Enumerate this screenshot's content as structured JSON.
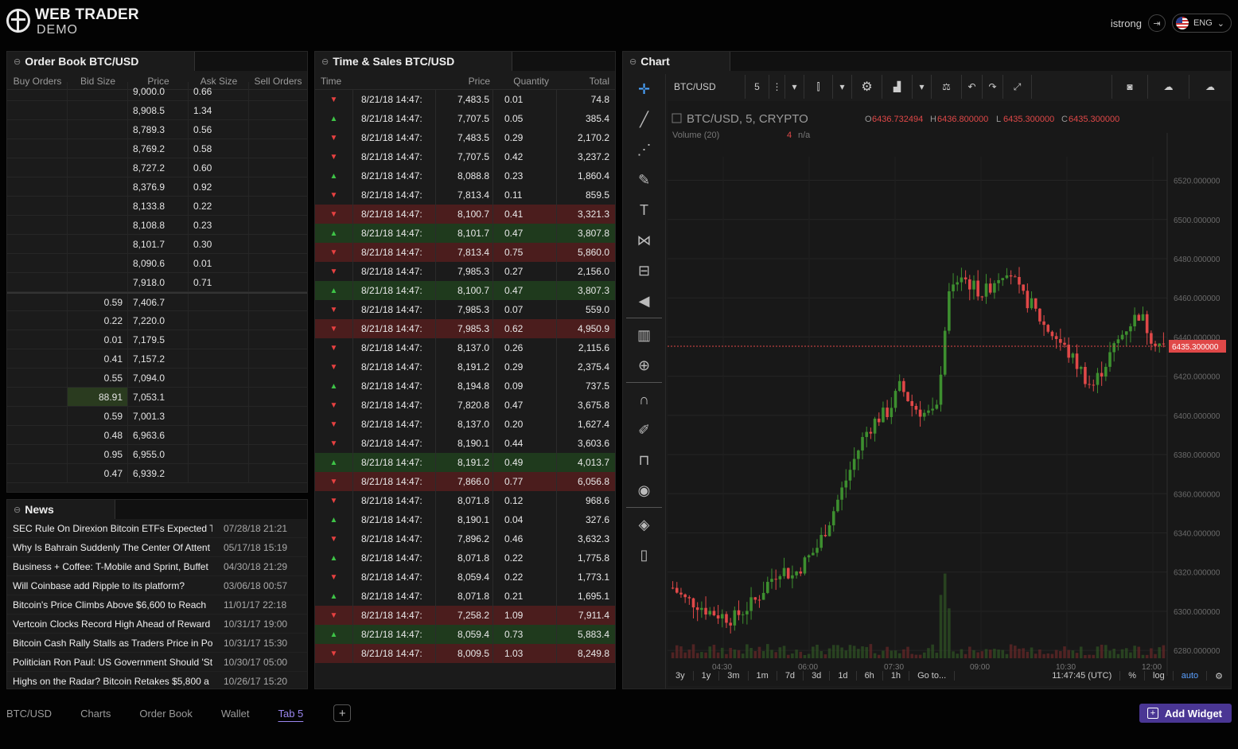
{
  "app": {
    "brand_line1": "WEB TRADER",
    "brand_line2": "DEMO",
    "username": "istrong",
    "language": "ENG"
  },
  "order_book": {
    "title": "Order Book BTC/USD",
    "columns": [
      "Buy Orders",
      "Bid Size",
      "Price",
      "Ask Size",
      "Sell Orders"
    ],
    "asks": [
      {
        "price": "9,000.0",
        "size": "0.66"
      },
      {
        "price": "8,908.5",
        "size": "1.34"
      },
      {
        "price": "8,789.3",
        "size": "0.56"
      },
      {
        "price": "8,769.2",
        "size": "0.58"
      },
      {
        "price": "8,727.2",
        "size": "0.60"
      },
      {
        "price": "8,376.9",
        "size": "0.92"
      },
      {
        "price": "8,133.8",
        "size": "0.22"
      },
      {
        "price": "8,108.8",
        "size": "0.23"
      },
      {
        "price": "8,101.7",
        "size": "0.30"
      },
      {
        "price": "8,090.6",
        "size": "0.01"
      },
      {
        "price": "7,918.0",
        "size": "0.71"
      }
    ],
    "bids": [
      {
        "size": "0.59",
        "price": "7,406.7"
      },
      {
        "size": "0.22",
        "price": "7,220.0"
      },
      {
        "size": "0.01",
        "price": "7,179.5"
      },
      {
        "size": "0.41",
        "price": "7,157.2"
      },
      {
        "size": "0.55",
        "price": "7,094.0"
      },
      {
        "size": "88.91",
        "price": "7,053.1"
      },
      {
        "size": "0.59",
        "price": "7,001.3"
      },
      {
        "size": "0.48",
        "price": "6,963.6"
      },
      {
        "size": "0.95",
        "price": "6,955.0"
      },
      {
        "size": "0.47",
        "price": "6,939.2"
      }
    ]
  },
  "news": {
    "title": "News",
    "items": [
      {
        "title": "SEC Rule On Direxion Bitcoin ETFs Expected T",
        "date": "07/28/18 21:21"
      },
      {
        "title": "Why Is Bahrain Suddenly The Center Of Attent",
        "date": "05/17/18 15:19"
      },
      {
        "title": "Business + Coffee: T-Mobile and Sprint, Buffet",
        "date": "04/30/18 21:29"
      },
      {
        "title": "Will Coinbase add Ripple to its platform?",
        "date": "03/06/18 00:57"
      },
      {
        "title": "Bitcoin's Price Climbs Above $6,600 to Reach",
        "date": "11/01/17 22:18"
      },
      {
        "title": "Vertcoin Clocks Record High Ahead of Reward",
        "date": "10/31/17 19:00"
      },
      {
        "title": "Bitcoin Cash Rally Stalls as Traders Price in Po",
        "date": "10/31/17 15:30"
      },
      {
        "title": "Politician Ron Paul: US Government Should 'St",
        "date": "10/30/17 05:00"
      },
      {
        "title": "Highs on the Radar? Bitcoin Retakes $5,800 a",
        "date": "10/26/17 15:20"
      }
    ]
  },
  "time_sales": {
    "title": "Time & Sales BTC/USD",
    "columns": [
      "Time",
      "Price",
      "Quantity",
      "Total"
    ],
    "rows": [
      {
        "dir": "dn",
        "hi": false,
        "time": "8/21/18 14:47:",
        "price": "7,483.5",
        "qty": "0.01",
        "total": "74.8"
      },
      {
        "dir": "up",
        "hi": false,
        "time": "8/21/18 14:47:",
        "price": "7,707.5",
        "qty": "0.05",
        "total": "385.4"
      },
      {
        "dir": "dn",
        "hi": false,
        "time": "8/21/18 14:47:",
        "price": "7,483.5",
        "qty": "0.29",
        "total": "2,170.2"
      },
      {
        "dir": "dn",
        "hi": false,
        "time": "8/21/18 14:47:",
        "price": "7,707.5",
        "qty": "0.42",
        "total": "3,237.2"
      },
      {
        "dir": "up",
        "hi": false,
        "time": "8/21/18 14:47:",
        "price": "8,088.8",
        "qty": "0.23",
        "total": "1,860.4"
      },
      {
        "dir": "dn",
        "hi": false,
        "time": "8/21/18 14:47:",
        "price": "7,813.4",
        "qty": "0.11",
        "total": "859.5"
      },
      {
        "dir": "dn",
        "hi": true,
        "time": "8/21/18 14:47:",
        "price": "8,100.7",
        "qty": "0.41",
        "total": "3,321.3"
      },
      {
        "dir": "up",
        "hi": true,
        "time": "8/21/18 14:47:",
        "price": "8,101.7",
        "qty": "0.47",
        "total": "3,807.8"
      },
      {
        "dir": "dn",
        "hi": true,
        "time": "8/21/18 14:47:",
        "price": "7,813.4",
        "qty": "0.75",
        "total": "5,860.0"
      },
      {
        "dir": "dn",
        "hi": false,
        "time": "8/21/18 14:47:",
        "price": "7,985.3",
        "qty": "0.27",
        "total": "2,156.0"
      },
      {
        "dir": "up",
        "hi": true,
        "time": "8/21/18 14:47:",
        "price": "8,100.7",
        "qty": "0.47",
        "total": "3,807.3"
      },
      {
        "dir": "dn",
        "hi": false,
        "time": "8/21/18 14:47:",
        "price": "7,985.3",
        "qty": "0.07",
        "total": "559.0"
      },
      {
        "dir": "dn",
        "hi": true,
        "time": "8/21/18 14:47:",
        "price": "7,985.3",
        "qty": "0.62",
        "total": "4,950.9"
      },
      {
        "dir": "dn",
        "hi": false,
        "time": "8/21/18 14:47:",
        "price": "8,137.0",
        "qty": "0.26",
        "total": "2,115.6"
      },
      {
        "dir": "dn",
        "hi": false,
        "time": "8/21/18 14:47:",
        "price": "8,191.2",
        "qty": "0.29",
        "total": "2,375.4"
      },
      {
        "dir": "up",
        "hi": false,
        "time": "8/21/18 14:47:",
        "price": "8,194.8",
        "qty": "0.09",
        "total": "737.5"
      },
      {
        "dir": "dn",
        "hi": false,
        "time": "8/21/18 14:47:",
        "price": "7,820.8",
        "qty": "0.47",
        "total": "3,675.8"
      },
      {
        "dir": "dn",
        "hi": false,
        "time": "8/21/18 14:47:",
        "price": "8,137.0",
        "qty": "0.20",
        "total": "1,627.4"
      },
      {
        "dir": "dn",
        "hi": false,
        "time": "8/21/18 14:47:",
        "price": "8,190.1",
        "qty": "0.44",
        "total": "3,603.6"
      },
      {
        "dir": "up",
        "hi": true,
        "time": "8/21/18 14:47:",
        "price": "8,191.2",
        "qty": "0.49",
        "total": "4,013.7"
      },
      {
        "dir": "dn",
        "hi": true,
        "time": "8/21/18 14:47:",
        "price": "7,866.0",
        "qty": "0.77",
        "total": "6,056.8"
      },
      {
        "dir": "dn",
        "hi": false,
        "time": "8/21/18 14:47:",
        "price": "8,071.8",
        "qty": "0.12",
        "total": "968.6"
      },
      {
        "dir": "up",
        "hi": false,
        "time": "8/21/18 14:47:",
        "price": "8,190.1",
        "qty": "0.04",
        "total": "327.6"
      },
      {
        "dir": "dn",
        "hi": false,
        "time": "8/21/18 14:47:",
        "price": "7,896.2",
        "qty": "0.46",
        "total": "3,632.3"
      },
      {
        "dir": "up",
        "hi": false,
        "time": "8/21/18 14:47:",
        "price": "8,071.8",
        "qty": "0.22",
        "total": "1,775.8"
      },
      {
        "dir": "dn",
        "hi": false,
        "time": "8/21/18 14:47:",
        "price": "8,059.4",
        "qty": "0.22",
        "total": "1,773.1"
      },
      {
        "dir": "up",
        "hi": false,
        "time": "8/21/18 14:47:",
        "price": "8,071.8",
        "qty": "0.21",
        "total": "1,695.1"
      },
      {
        "dir": "dn",
        "hi": true,
        "time": "8/21/18 14:47:",
        "price": "7,258.2",
        "qty": "1.09",
        "total": "7,911.4"
      },
      {
        "dir": "up",
        "hi": true,
        "time": "8/21/18 14:47:",
        "price": "8,059.4",
        "qty": "0.73",
        "total": "5,883.4"
      },
      {
        "dir": "dn",
        "hi": true,
        "time": "8/21/18 14:47:",
        "price": "8,009.5",
        "qty": "1.03",
        "total": "8,249.8"
      }
    ]
  },
  "chart": {
    "title": "Chart",
    "symbol": "BTC/USD",
    "interval": "5",
    "legend_title": "BTC/USD, 5, CRYPTO",
    "ohlc": {
      "o": "6436.732494",
      "h": "6436.800000",
      "l": "6435.300000",
      "c": "6435.300000"
    },
    "volume_label": "Volume (20)",
    "volume_value": "4",
    "volume_na": "n/a",
    "last_price": "6435.300000",
    "ranges": [
      "3y",
      "1y",
      "3m",
      "1m",
      "7d",
      "3d",
      "1d",
      "6h",
      "1h"
    ],
    "goto": "Go to...",
    "clock": "11:47:45 (UTC)",
    "pct": "%",
    "log": "log",
    "auto": "auto",
    "colors": {
      "up": "#3d8f2f",
      "down": "#e04848",
      "accent": "#6c5ce7"
    }
  },
  "chart_data": {
    "type": "candlestick",
    "title": "BTC/USD, 5, CRYPTO",
    "x_ticks": [
      "04:30",
      "06:00",
      "07:30",
      "09:00",
      "10:30",
      "12:00"
    ],
    "y_ticks": [
      "6520.000000",
      "6500.000000",
      "6480.000000",
      "6460.000000",
      "6440.000000",
      "6420.000000",
      "6400.000000",
      "6380.000000",
      "6360.000000",
      "6340.000000",
      "6320.000000",
      "6300.000000",
      "6280.000000"
    ],
    "ylim": [
      6276,
      6532
    ],
    "last_value": 6435.3,
    "close_path": [
      6312,
      6306,
      6304,
      6300,
      6298,
      6296,
      6301,
      6306,
      6315,
      6322,
      6318,
      6325,
      6332,
      6345,
      6360,
      6375,
      6390,
      6398,
      6402,
      6415,
      6405,
      6401,
      6400,
      6460,
      6472,
      6466,
      6462,
      6470,
      6476,
      6462,
      6456,
      6446,
      6440,
      6432,
      6424,
      6414,
      6425,
      6436,
      6446,
      6452,
      6440,
      6435
    ]
  },
  "bottom_tabs": [
    "BTC/USD",
    "Charts",
    "Order Book",
    "Wallet",
    "Tab 5"
  ],
  "add_widget": "Add Widget"
}
